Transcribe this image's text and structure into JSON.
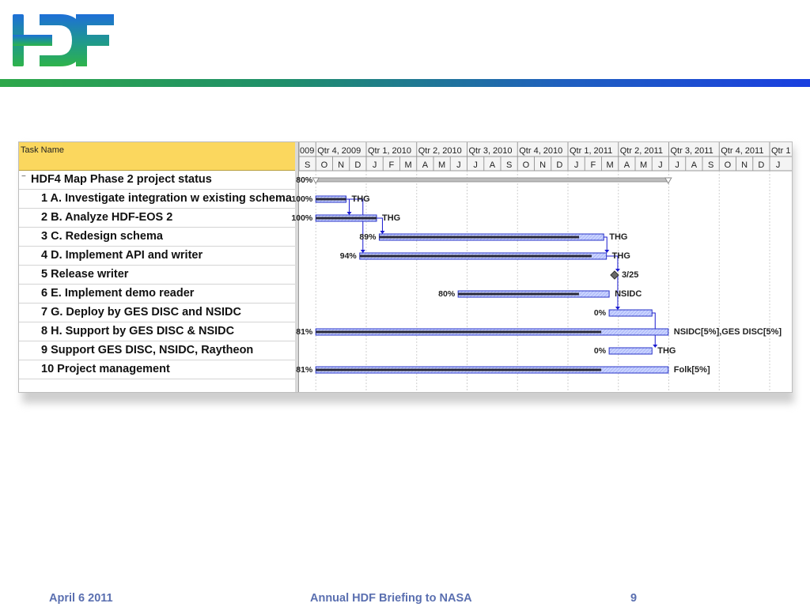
{
  "logo": {
    "text": "HDF"
  },
  "gantt": {
    "task_column_header": "Task Name",
    "tasks": [
      {
        "name": "HDF4 Map Phase 2 project status",
        "collapse_icon": "−"
      },
      {
        "name": "1 A. Investigate integration w existing schema"
      },
      {
        "name": "2 B. Analyze HDF-EOS 2"
      },
      {
        "name": "3 C. Redesign schema"
      },
      {
        "name": "4 D. Implement API and writer"
      },
      {
        "name": "5 Release writer"
      },
      {
        "name": "6 E. Implement demo reader"
      },
      {
        "name": "7 G. Deploy by GES DISC and NSIDC"
      },
      {
        "name": "8 H. Support by GES DISC & NSIDC"
      },
      {
        "name": "9 Support GES DISC, NSIDC, Raytheon"
      },
      {
        "name": "10 Project management"
      }
    ]
  },
  "chart_data": {
    "type": "gantt",
    "quarters": [
      "009",
      "Qtr 4, 2009",
      "Qtr 1, 2010",
      "Qtr 2, 2010",
      "Qtr 3, 2010",
      "Qtr 4, 2010",
      "Qtr 1, 2011",
      "Qtr 2, 2011",
      "Qtr 3, 2011",
      "Qtr 4, 2011",
      "Qtr 1"
    ],
    "months": [
      "S",
      "O",
      "N",
      "D",
      "J",
      "F",
      "M",
      "A",
      "M",
      "J",
      "J",
      "A",
      "S",
      "O",
      "N",
      "D",
      "J",
      "F",
      "M",
      "A",
      "M",
      "J",
      "J",
      "A",
      "S",
      "O",
      "N",
      "D",
      "J"
    ],
    "timeline_start": "2009-09-01",
    "bars": [
      {
        "start": "2009-10-01",
        "end": "2011-06-30",
        "percent": 80,
        "percent_label": "80%",
        "kind": "summary",
        "label": ""
      },
      {
        "start": "2009-10-01",
        "end": "2009-11-25",
        "percent": 100,
        "percent_label": "100%",
        "kind": "task",
        "label": "THG"
      },
      {
        "start": "2009-10-01",
        "end": "2010-01-20",
        "percent": 100,
        "percent_label": "100%",
        "kind": "task",
        "label": "THG"
      },
      {
        "start": "2010-01-25",
        "end": "2011-03-05",
        "percent": 89,
        "percent_label": "89%",
        "kind": "task",
        "label": "THG"
      },
      {
        "start": "2009-12-20",
        "end": "2011-03-10",
        "percent": 94,
        "percent_label": "94%",
        "kind": "task",
        "label": "THG"
      },
      {
        "start": "2011-03-25",
        "end": "2011-03-25",
        "percent": null,
        "percent_label": "",
        "kind": "milestone",
        "label": "3/25"
      },
      {
        "start": "2010-06-15",
        "end": "2011-03-15",
        "percent": 80,
        "percent_label": "80%",
        "kind": "task",
        "label": "NSIDC"
      },
      {
        "start": "2011-03-15",
        "end": "2011-06-01",
        "percent": 0,
        "percent_label": "0%",
        "kind": "task",
        "label": ""
      },
      {
        "start": "2009-10-01",
        "end": "2011-06-30",
        "percent": 81,
        "percent_label": "81%",
        "kind": "task",
        "label": "NSIDC[5%],GES DISC[5%]"
      },
      {
        "start": "2011-03-15",
        "end": "2011-06-01",
        "percent": 0,
        "percent_label": "0%",
        "kind": "task",
        "label": "THG"
      },
      {
        "start": "2009-10-01",
        "end": "2011-06-30",
        "percent": 81,
        "percent_label": "81%",
        "kind": "task",
        "label": "Folk[5%]"
      }
    ]
  },
  "footer": {
    "date": "April 6 2011",
    "title": "Annual HDF Briefing to NASA",
    "page": "9"
  },
  "colors": {
    "header_fill": "#fbd75e",
    "bar_fill": "#c9d3ff",
    "bar_border": "#2a34c8",
    "progress": "#2a2a3a",
    "summary": "#bdbdbd",
    "link": "#1a1ad0"
  }
}
